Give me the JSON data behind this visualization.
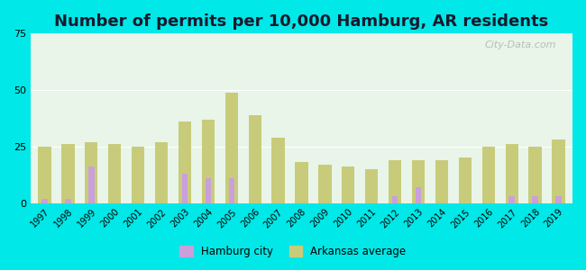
{
  "title": "Number of permits per 10,000 Hamburg, AR residents",
  "years": [
    1997,
    1998,
    1999,
    2000,
    2001,
    2002,
    2003,
    2004,
    2005,
    2006,
    2007,
    2008,
    2009,
    2010,
    2011,
    2012,
    2013,
    2014,
    2015,
    2016,
    2017,
    2018,
    2019
  ],
  "hamburg_city": [
    2,
    2,
    16,
    0,
    0,
    0,
    13,
    11,
    11,
    0,
    0,
    0,
    0,
    0,
    0,
    3,
    7,
    0,
    0,
    0,
    3,
    3,
    3
  ],
  "arkansas_avg": [
    25,
    26,
    27,
    26,
    25,
    27,
    36,
    37,
    49,
    39,
    29,
    18,
    17,
    16,
    15,
    19,
    19,
    19,
    20,
    25,
    26,
    25,
    28
  ],
  "hamburg_color": "#c9a0dc",
  "arkansas_color": "#c8cc7a",
  "plot_bg": "#e8f5e8",
  "outer_bg": "#00e8e8",
  "ylim": [
    0,
    75
  ],
  "yticks": [
    0,
    25,
    50,
    75
  ],
  "title_fontsize": 13,
  "watermark": "City-Data.com",
  "legend_hamburg": "Hamburg city",
  "legend_arkansas": "Arkansas average"
}
